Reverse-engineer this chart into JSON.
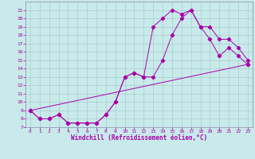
{
  "xlabel": "Windchill (Refroidissement éolien,°C)",
  "xlim": [
    -0.5,
    23.5
  ],
  "ylim": [
    7,
    22
  ],
  "xticks": [
    0,
    1,
    2,
    3,
    4,
    5,
    6,
    7,
    8,
    9,
    10,
    11,
    12,
    13,
    14,
    15,
    16,
    17,
    18,
    19,
    20,
    21,
    22,
    23
  ],
  "yticks": [
    7,
    8,
    9,
    10,
    11,
    12,
    13,
    14,
    15,
    16,
    17,
    18,
    19,
    20,
    21
  ],
  "bg_color": "#c8eaea",
  "line_color": "#aa00aa",
  "grid_color": "#aacccc",
  "curve1_x": [
    0,
    1,
    2,
    3,
    4,
    5,
    6,
    7,
    8,
    9,
    10,
    11,
    12,
    13,
    14,
    15,
    16,
    17,
    18,
    19,
    20,
    21,
    22,
    23
  ],
  "curve1_y": [
    9,
    8,
    8,
    8.5,
    7.5,
    7.5,
    7.5,
    7.5,
    8.5,
    10.0,
    13.0,
    13.5,
    13.0,
    13.0,
    15.0,
    18.0,
    20.0,
    21.0,
    19.0,
    19.0,
    17.5,
    17.5,
    16.5,
    15.0
  ],
  "curve2_x": [
    0,
    1,
    2,
    3,
    4,
    5,
    6,
    7,
    8,
    9,
    10,
    11,
    12,
    13,
    14,
    15,
    16,
    17,
    18,
    19,
    20,
    21,
    22,
    23
  ],
  "curve2_y": [
    9,
    8,
    8,
    8.5,
    7.5,
    7.5,
    7.5,
    7.5,
    8.5,
    10.0,
    13.0,
    13.5,
    13.0,
    19.0,
    20.0,
    21.0,
    20.5,
    21.0,
    19.0,
    17.5,
    15.5,
    16.5,
    15.5,
    14.5
  ],
  "line3_x": [
    0,
    23
  ],
  "line3_y": [
    9,
    14.5
  ]
}
